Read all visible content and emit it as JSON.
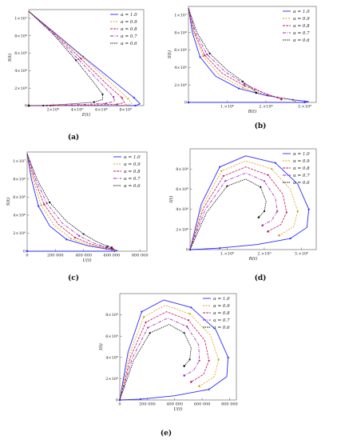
{
  "colors": {
    "alpha_1_0": "#2a2aff",
    "alpha_0_9": "#d4a017",
    "alpha_0_8": "#c2185b",
    "alpha_0_7": "#9c27b0",
    "alpha_0_6": "#111111"
  },
  "legend_labels": [
    "α = 1.0",
    "α = 0.9",
    "α = 0.8",
    "α = 0.7",
    "α = 0.6"
  ],
  "chart_data": [
    {
      "panel_label": "(a)",
      "type": "line",
      "xlabel": "E(t)",
      "ylabel": "S(t)",
      "xlim": [
        0,
        9500000
      ],
      "ylim": [
        0,
        11000000
      ],
      "xticks": [
        {
          "v": 2000000,
          "t": "2×10⁶"
        },
        {
          "v": 4000000,
          "t": "4×10⁶"
        },
        {
          "v": 6000000,
          "t": "6×10⁶"
        },
        {
          "v": 8000000,
          "t": "8×10⁶"
        }
      ],
      "yticks": [
        {
          "v": 0,
          "t": "0"
        },
        {
          "v": 2000000,
          "t": "2×10⁶"
        },
        {
          "v": 4000000,
          "t": "4×10⁶"
        },
        {
          "v": 6000000,
          "t": "6×10⁶"
        },
        {
          "v": 8000000,
          "t": "8×10⁶"
        },
        {
          "v": 10000000,
          "t": "1×10⁷"
        }
      ],
      "series": [
        {
          "name": "α = 1.0",
          "x": [
            0,
            2000000,
            4500000,
            7000000,
            8700000,
            9200000,
            8800000,
            6000000,
            2000000,
            0
          ],
          "y": [
            10800000,
            8500000,
            5600000,
            2800000,
            900000,
            200000,
            0,
            0,
            0,
            0
          ]
        },
        {
          "name": "α = 0.9",
          "x": [
            0,
            2000000,
            4500000,
            6800000,
            8200000,
            8500000,
            8000000,
            5500000,
            2000000,
            0
          ],
          "y": [
            10800000,
            8450000,
            5500000,
            2600000,
            800000,
            250000,
            50000,
            20000,
            0,
            0
          ]
        },
        {
          "name": "α = 0.8",
          "x": [
            0,
            2000000,
            4300000,
            6400000,
            7700000,
            7900000,
            7300000,
            5000000,
            1800000,
            0
          ],
          "y": [
            10800000,
            8400000,
            5400000,
            2500000,
            900000,
            350000,
            150000,
            60000,
            0,
            0
          ]
        },
        {
          "name": "α = 0.7",
          "x": [
            0,
            2000000,
            4100000,
            6000000,
            7000000,
            7100000,
            6400000,
            4200000,
            1500000,
            0
          ],
          "y": [
            10800000,
            8300000,
            5300000,
            2500000,
            1000000,
            500000,
            250000,
            120000,
            0,
            0
          ]
        },
        {
          "name": "α = 0.6",
          "x": [
            0,
            2000000,
            3900000,
            5400000,
            6100000,
            6100000,
            5400000,
            3500000,
            1200000,
            0
          ],
          "y": [
            10800000,
            8200000,
            5200000,
            2600000,
            1300000,
            700000,
            400000,
            200000,
            0,
            0
          ]
        }
      ]
    },
    {
      "panel_label": "(b)",
      "type": "line",
      "xlabel": "R(t)",
      "ylabel": "S(t)",
      "xlim": [
        0,
        3300000
      ],
      "ylim": [
        0,
        11000000
      ],
      "xticks": [
        {
          "v": 1000000,
          "t": "1.×10⁶"
        },
        {
          "v": 2000000,
          "t": "2.×10⁶"
        },
        {
          "v": 3000000,
          "t": "3.×10⁶"
        }
      ],
      "yticks": [
        {
          "v": 0,
          "t": "0"
        },
        {
          "v": 2000000,
          "t": "2×10⁶"
        },
        {
          "v": 4000000,
          "t": "4×10⁶"
        },
        {
          "v": 6000000,
          "t": "6×10⁶"
        },
        {
          "v": 8000000,
          "t": "8×10⁶"
        },
        {
          "v": 10000000,
          "t": "1×10⁷"
        }
      ],
      "series": [
        {
          "name": "α = 1.0",
          "x": [
            0,
            100000,
            300000,
            700000,
            1300000,
            2000000,
            2700000,
            3100000,
            3000000,
            1500000,
            0
          ],
          "y": [
            10800000,
            8000000,
            5200000,
            3000000,
            1600000,
            800000,
            300000,
            100000,
            0,
            0,
            0
          ]
        },
        {
          "name": "α = 0.9",
          "x": [
            0,
            130000,
            380000,
            800000,
            1400000,
            2000000,
            2500000,
            2750000
          ],
          "y": [
            10800000,
            8000000,
            5300000,
            3100000,
            1700000,
            900000,
            400000,
            200000
          ]
        },
        {
          "name": "α = 0.8",
          "x": [
            0,
            150000,
            420000,
            880000,
            1450000,
            2000000,
            2300000,
            2400000
          ],
          "y": [
            10800000,
            8000000,
            5400000,
            3300000,
            1900000,
            1000000,
            550000,
            350000
          ]
        },
        {
          "name": "α = 0.7",
          "x": [
            0,
            180000,
            480000,
            950000,
            1450000,
            1850000,
            2050000
          ],
          "y": [
            10800000,
            8000000,
            5500000,
            3500000,
            2100000,
            1300000,
            800000
          ]
        },
        {
          "name": "α = 0.6",
          "x": [
            0,
            220000,
            550000,
            1000000,
            1400000,
            1650000,
            1750000
          ],
          "y": [
            10800000,
            8000000,
            5600000,
            3700000,
            2400000,
            1600000,
            1100000
          ]
        }
      ]
    },
    {
      "panel_label": "(c)",
      "type": "line",
      "xlabel": "U(t)",
      "ylabel": "S(t)",
      "xlim": [
        0,
        850000
      ],
      "ylim": [
        0,
        11000000
      ],
      "xticks": [
        {
          "v": 0,
          "t": "0"
        },
        {
          "v": 200000,
          "t": "200 000"
        },
        {
          "v": 400000,
          "t": "400 000"
        },
        {
          "v": 600000,
          "t": "600 000"
        },
        {
          "v": 800000,
          "t": "800 000"
        }
      ],
      "yticks": [
        {
          "v": 0,
          "t": "0"
        },
        {
          "v": 2000000,
          "t": "2×10⁶"
        },
        {
          "v": 4000000,
          "t": "4×10⁶"
        },
        {
          "v": 6000000,
          "t": "6×10⁶"
        },
        {
          "v": 8000000,
          "t": "8×10⁶"
        },
        {
          "v": 10000000,
          "t": "1×10⁷"
        }
      ],
      "series": [
        {
          "name": "α = 1.0",
          "x": [
            0,
            30000,
            80000,
            160000,
            280000,
            430000,
            560000,
            640000,
            620000,
            300000,
            0
          ],
          "y": [
            10800000,
            8000000,
            5000000,
            2800000,
            1300000,
            600000,
            250000,
            80000,
            0,
            0,
            0
          ]
        },
        {
          "name": "α = 0.9",
          "x": [
            0,
            40000,
            100000,
            190000,
            310000,
            450000,
            560000,
            620000
          ],
          "y": [
            10800000,
            8000000,
            5100000,
            2900000,
            1400000,
            650000,
            300000,
            150000
          ]
        },
        {
          "name": "α = 0.8",
          "x": [
            0,
            50000,
            120000,
            220000,
            340000,
            460000,
            560000,
            610000
          ],
          "y": [
            10800000,
            8000000,
            5200000,
            3000000,
            1500000,
            750000,
            380000,
            220000
          ]
        },
        {
          "name": "α = 0.7",
          "x": [
            0,
            60000,
            140000,
            250000,
            370000,
            480000,
            560000,
            600000
          ],
          "y": [
            10800000,
            8000000,
            5300000,
            3100000,
            1700000,
            850000,
            450000,
            300000
          ]
        },
        {
          "name": "α = 0.6",
          "x": [
            0,
            70000,
            160000,
            280000,
            400000,
            500000,
            570000,
            600000
          ],
          "y": [
            10800000,
            8000000,
            5400000,
            3300000,
            1900000,
            1000000,
            550000,
            400000
          ]
        }
      ]
    },
    {
      "panel_label": "(d)",
      "type": "line",
      "xlabel": "R(t)",
      "ylabel": "I(t)",
      "xlim": [
        0,
        3400000
      ],
      "ylim": [
        0,
        10000000
      ],
      "xticks": [
        {
          "v": 1000000,
          "t": "1.×10⁶"
        },
        {
          "v": 2000000,
          "t": "2.×10⁶"
        },
        {
          "v": 3000000,
          "t": "3.×10⁶"
        }
      ],
      "yticks": [
        {
          "v": 0,
          "t": "0"
        },
        {
          "v": 2000000,
          "t": "2×10⁶"
        },
        {
          "v": 4000000,
          "t": "4×10⁶"
        },
        {
          "v": 6000000,
          "t": "6×10⁶"
        },
        {
          "v": 8000000,
          "t": "8×10⁶"
        }
      ],
      "series": [
        {
          "name": "α = 1.0",
          "x": [
            0,
            300000,
            800000,
            1500000,
            2300000,
            2900000,
            3200000,
            3150000,
            2700000,
            1800000,
            800000,
            200000,
            0
          ],
          "y": [
            0,
            4500000,
            8200000,
            9300000,
            8600000,
            6500000,
            4000000,
            2200000,
            1100000,
            500000,
            150000,
            30000,
            0
          ]
        },
        {
          "name": "α = 0.9",
          "x": [
            0,
            330000,
            850000,
            1500000,
            2200000,
            2700000,
            2900000,
            2800000,
            2400000
          ],
          "y": [
            0,
            4300000,
            7800000,
            8800000,
            8000000,
            6000000,
            3800000,
            2300000,
            1400000
          ]
        },
        {
          "name": "α = 0.8",
          "x": [
            0,
            360000,
            900000,
            1500000,
            2100000,
            2500000,
            2600000,
            2450000,
            2100000
          ],
          "y": [
            0,
            4100000,
            7300000,
            8200000,
            7400000,
            5500000,
            3700000,
            2500000,
            1800000
          ]
        },
        {
          "name": "α = 0.7",
          "x": [
            0,
            400000,
            950000,
            1500000,
            2000000,
            2300000,
            2350000,
            2200000,
            1950000
          ],
          "y": [
            0,
            3900000,
            6800000,
            7600000,
            6800000,
            5100000,
            3800000,
            2900000,
            2400000
          ]
        },
        {
          "name": "α = 0.6",
          "x": [
            0,
            450000,
            1000000,
            1500000,
            1900000,
            2050000,
            2000000,
            1850000
          ],
          "y": [
            0,
            3700000,
            6300000,
            7000000,
            6200000,
            4800000,
            3800000,
            3200000
          ]
        }
      ]
    },
    {
      "panel_label": "(e)",
      "type": "line",
      "xlabel": "U(t)",
      "ylabel": "I(t)",
      "xlim": [
        0,
        850000
      ],
      "ylim": [
        0,
        10000000
      ],
      "xticks": [
        {
          "v": 0,
          "t": "0"
        },
        {
          "v": 200000,
          "t": "200 000"
        },
        {
          "v": 400000,
          "t": "400 000"
        },
        {
          "v": 600000,
          "t": "600 000"
        },
        {
          "v": 800000,
          "t": "800 000"
        }
      ],
      "yticks": [
        {
          "v": 0,
          "t": "0"
        },
        {
          "v": 2000000,
          "t": "2×10⁶"
        },
        {
          "v": 4000000,
          "t": "4×10⁶"
        },
        {
          "v": 6000000,
          "t": "6×10⁶"
        },
        {
          "v": 8000000,
          "t": "8×10⁶"
        }
      ],
      "series": [
        {
          "name": "α = 1.0",
          "x": [
            0,
            60000,
            160000,
            320000,
            520000,
            700000,
            790000,
            780000,
            650000,
            400000,
            150000,
            0
          ],
          "y": [
            0,
            4500000,
            8300000,
            9400000,
            8700000,
            6600000,
            4000000,
            2200000,
            1000000,
            400000,
            80000,
            0
          ]
        },
        {
          "name": "α = 0.9",
          "x": [
            0,
            70000,
            175000,
            330000,
            510000,
            660000,
            720000,
            690000,
            580000
          ],
          "y": [
            0,
            4300000,
            7800000,
            8900000,
            8100000,
            6100000,
            3800000,
            2200000,
            1300000
          ]
        },
        {
          "name": "α = 0.8",
          "x": [
            0,
            80000,
            190000,
            340000,
            500000,
            620000,
            650000,
            610000,
            520000
          ],
          "y": [
            0,
            4100000,
            7300000,
            8300000,
            7500000,
            5600000,
            3700000,
            2400000,
            1700000
          ]
        },
        {
          "name": "α = 0.7",
          "x": [
            0,
            90000,
            205000,
            350000,
            490000,
            575000,
            580000,
            540000,
            470000
          ],
          "y": [
            0,
            3900000,
            6800000,
            7700000,
            6900000,
            5200000,
            3700000,
            2800000,
            2300000
          ]
        },
        {
          "name": "α = 0.6",
          "x": [
            0,
            100000,
            220000,
            360000,
            470000,
            520000,
            510000,
            470000
          ],
          "y": [
            0,
            3700000,
            6300000,
            7100000,
            6300000,
            4900000,
            3800000,
            3200000
          ]
        }
      ]
    }
  ]
}
